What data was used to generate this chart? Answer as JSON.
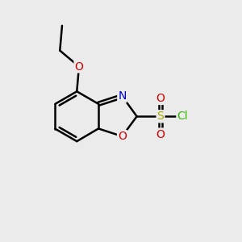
{
  "background_color": "#ebebeb",
  "bond_color": "#000000",
  "bond_width": 1.8,
  "dbo": 0.18,
  "atoms": {
    "N": {
      "color": "#0000cc",
      "fontsize": 10
    },
    "O": {
      "color": "#cc0000",
      "fontsize": 10
    },
    "S": {
      "color": "#aaaa00",
      "fontsize": 10
    },
    "Cl": {
      "color": "#33bb00",
      "fontsize": 10
    }
  },
  "figsize": [
    3.0,
    3.0
  ],
  "dpi": 100,
  "xlim": [
    0,
    10
  ],
  "ylim": [
    0,
    10
  ]
}
